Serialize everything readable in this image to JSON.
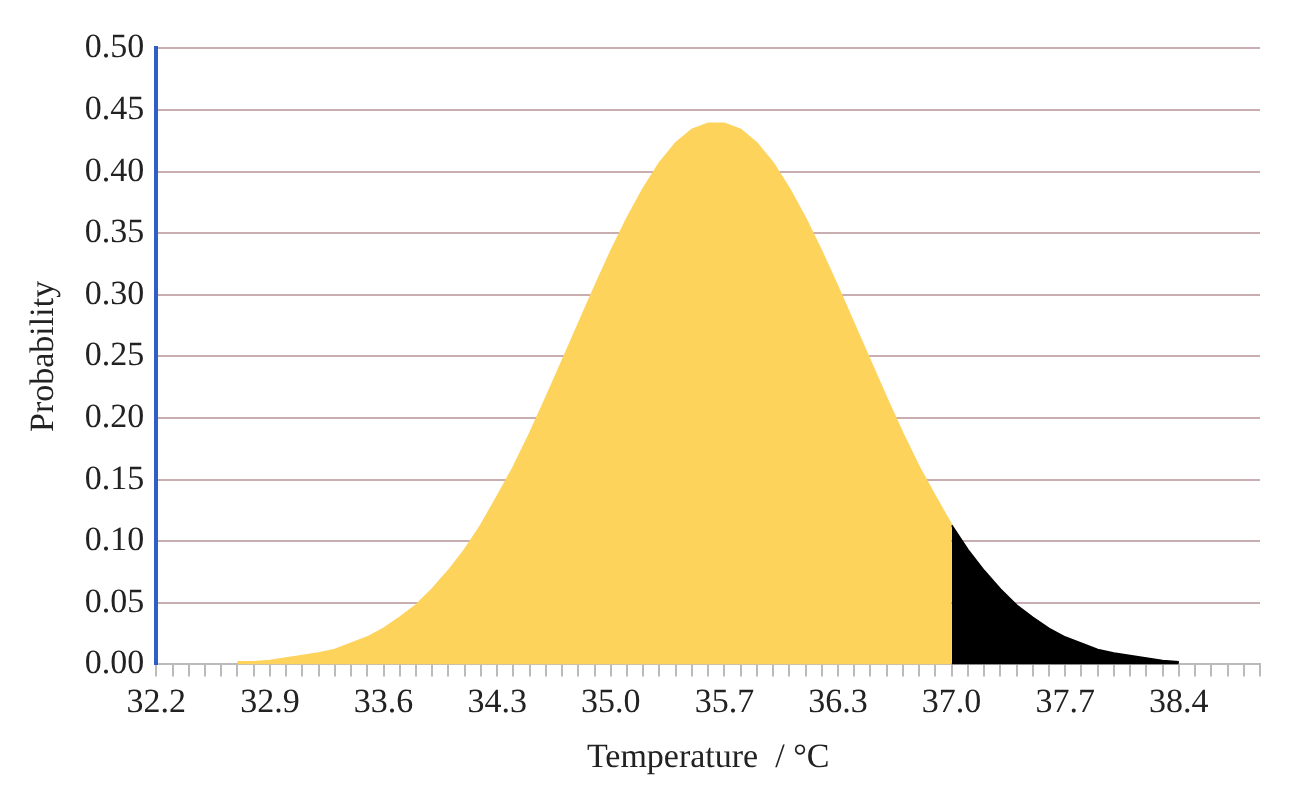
{
  "chart_data": {
    "type": "area",
    "xlabel": "Temperature  / °C",
    "ylabel": "Probability",
    "categories": [
      "32.2",
      null,
      null,
      null,
      null,
      null,
      null,
      "32.9",
      null,
      null,
      null,
      null,
      null,
      null,
      "33.6",
      null,
      null,
      null,
      null,
      null,
      null,
      "34.3",
      null,
      null,
      null,
      null,
      null,
      null,
      "35.0",
      null,
      null,
      null,
      null,
      null,
      null,
      "35.7",
      null,
      null,
      null,
      null,
      null,
      null,
      "36.3",
      null,
      null,
      null,
      null,
      null,
      null,
      "37.0",
      null,
      null,
      null,
      null,
      null,
      null,
      "37.7",
      null,
      null,
      null,
      null,
      null,
      null,
      "38.4",
      null,
      null,
      null,
      null,
      null
    ],
    "series": [
      {
        "color": "#fdd35c",
        "values": [
          null,
          null,
          null,
          null,
          null,
          0.002,
          0.002,
          0.003,
          0.005,
          0.007,
          0.009,
          0.012,
          0.017,
          0.022,
          0.029,
          0.038,
          0.048,
          0.061,
          0.076,
          0.093,
          0.113,
          0.136,
          0.16,
          0.187,
          0.216,
          0.246,
          0.276,
          0.306,
          0.335,
          0.362,
          0.386,
          0.407,
          0.423,
          0.434,
          0.439,
          0.439,
          0.434,
          0.423,
          0.407,
          0.386,
          0.362,
          0.335,
          0.306,
          0.276,
          0.246,
          0.216,
          0.187,
          0.16,
          0.136,
          0.113,
          null,
          null,
          null,
          null,
          null,
          null,
          null,
          null,
          null,
          null,
          null,
          null,
          null,
          null,
          null,
          null,
          null,
          null,
          null
        ]
      },
      {
        "color": "#000000",
        "values": [
          null,
          null,
          null,
          null,
          null,
          null,
          null,
          null,
          null,
          null,
          null,
          null,
          null,
          null,
          null,
          null,
          null,
          null,
          null,
          null,
          null,
          null,
          null,
          null,
          null,
          null,
          null,
          null,
          null,
          null,
          null,
          null,
          null,
          null,
          null,
          null,
          null,
          null,
          null,
          null,
          null,
          null,
          null,
          null,
          null,
          null,
          null,
          null,
          null,
          0.113,
          0.093,
          0.076,
          0.061,
          0.048,
          0.038,
          0.029,
          0.022,
          0.017,
          0.012,
          0.009,
          0.007,
          0.005,
          0.003,
          0.002,
          null,
          null,
          null,
          null,
          null
        ]
      }
    ],
    "ylim": [
      0,
      0.5
    ],
    "yticks": [
      {
        "value": 0,
        "label": "0.00"
      },
      {
        "value": 0.05,
        "label": "0.05"
      },
      {
        "value": 0.1,
        "label": "0.10"
      },
      {
        "value": 0.15,
        "label": "0.15"
      },
      {
        "value": 0.2,
        "label": "0.20"
      },
      {
        "value": 0.25,
        "label": "0.25"
      },
      {
        "value": 0.3,
        "label": "0.30"
      },
      {
        "value": 0.35,
        "label": "0.35"
      },
      {
        "value": 0.4,
        "label": "0.40"
      },
      {
        "value": 0.45,
        "label": "0.45"
      },
      {
        "value": 0.5,
        "label": "0.50"
      }
    ],
    "grid": "y",
    "legend": false
  }
}
